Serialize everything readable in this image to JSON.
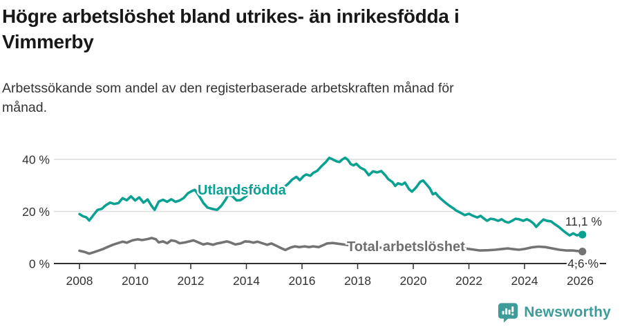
{
  "header": {
    "title_lines": [
      "Högre arbetslöshet bland utrikes- än inrikesfödda i",
      "Vimmerby"
    ],
    "subtitle_lines": [
      "Arbetssökande som andel av den registerbaserade arbetskraften månad för",
      "månad."
    ]
  },
  "colors": {
    "accent_teal": "#0aa192",
    "line_gray": "#737373",
    "label_gray": "#6e6e6e",
    "brand_teal": "#3d9b9a",
    "text_dark": "#181818",
    "text_body": "#333333",
    "gridline": "#dcdcdc",
    "axis": "#2e2e2e"
  },
  "chart_data": {
    "type": "line",
    "title": "Högre arbetslöshet bland utrikes- än inrikesfödda i Vimmerby",
    "subtitle": "Arbetssökande som andel av den registerbaserade arbetskraften månad för månad.",
    "xlabel": "",
    "ylabel": "",
    "grid": "horizontal",
    "legend_position": "inline-annotations",
    "x_axis": {
      "range": [
        2008,
        2026.2
      ],
      "ticks": [
        {
          "value": 2008,
          "label": "2008"
        },
        {
          "value": 2010,
          "label": "2010"
        },
        {
          "value": 2012,
          "label": "2012"
        },
        {
          "value": 2014,
          "label": "2014"
        },
        {
          "value": 2016,
          "label": "2016"
        },
        {
          "value": 2018,
          "label": "2018"
        },
        {
          "value": 2020,
          "label": "2020"
        },
        {
          "value": 2022,
          "label": "2022"
        },
        {
          "value": 2024,
          "label": "2024"
        },
        {
          "value": 2026,
          "label": "2026"
        }
      ]
    },
    "y_axis": {
      "range": [
        0,
        44
      ],
      "unit": "%",
      "ticks": [
        {
          "value": 0,
          "label": "0 %"
        },
        {
          "value": 20,
          "label": "20 %"
        },
        {
          "value": 40,
          "label": "40 %"
        }
      ]
    },
    "series": [
      {
        "name": "Utlandsfödda",
        "color": "#0aa192",
        "label_color": "#0aa192",
        "end_label": "11,1 %",
        "end_value": 11.1,
        "points": [
          [
            2008.0,
            19.0
          ],
          [
            2008.1,
            18.3
          ],
          [
            2008.25,
            17.7
          ],
          [
            2008.35,
            16.5
          ],
          [
            2008.5,
            18.6
          ],
          [
            2008.65,
            20.6
          ],
          [
            2008.8,
            21.0
          ],
          [
            2008.95,
            22.4
          ],
          [
            2009.1,
            23.4
          ],
          [
            2009.25,
            22.9
          ],
          [
            2009.4,
            23.2
          ],
          [
            2009.55,
            25.1
          ],
          [
            2009.7,
            24.3
          ],
          [
            2009.85,
            25.8
          ],
          [
            2010.0,
            24.2
          ],
          [
            2010.15,
            25.4
          ],
          [
            2010.3,
            23.4
          ],
          [
            2010.45,
            24.6
          ],
          [
            2010.6,
            22.0
          ],
          [
            2010.7,
            20.6
          ],
          [
            2010.85,
            23.8
          ],
          [
            2011.0,
            24.5
          ],
          [
            2011.15,
            23.7
          ],
          [
            2011.3,
            24.7
          ],
          [
            2011.45,
            23.7
          ],
          [
            2011.6,
            24.2
          ],
          [
            2011.75,
            25.2
          ],
          [
            2011.9,
            27.0
          ],
          [
            2012.05,
            27.9
          ],
          [
            2012.15,
            28.3
          ],
          [
            2012.3,
            26.0
          ],
          [
            2012.45,
            23.3
          ],
          [
            2012.6,
            21.5
          ],
          [
            2012.8,
            20.9
          ],
          [
            2012.95,
            20.6
          ],
          [
            2013.1,
            22.2
          ],
          [
            2013.25,
            24.5
          ],
          [
            2013.35,
            26.4
          ],
          [
            2013.5,
            25.8
          ],
          [
            2013.65,
            24.2
          ],
          [
            2013.8,
            24.4
          ],
          [
            2013.95,
            25.5
          ],
          [
            2014.1,
            26.9
          ],
          [
            2014.2,
            27.8
          ],
          [
            2014.35,
            26.6
          ],
          [
            2014.5,
            27.1
          ],
          [
            2014.7,
            27.7
          ],
          [
            2014.9,
            28.3
          ],
          [
            2015.05,
            28.0
          ],
          [
            2015.2,
            28.7
          ],
          [
            2015.35,
            29.3
          ],
          [
            2015.5,
            30.6
          ],
          [
            2015.65,
            32.3
          ],
          [
            2015.8,
            33.3
          ],
          [
            2015.92,
            32.0
          ],
          [
            2016.05,
            33.5
          ],
          [
            2016.15,
            34.2
          ],
          [
            2016.3,
            33.7
          ],
          [
            2016.4,
            34.8
          ],
          [
            2016.55,
            35.6
          ],
          [
            2016.7,
            37.4
          ],
          [
            2016.85,
            38.9
          ],
          [
            2016.98,
            40.6
          ],
          [
            2017.1,
            40.0
          ],
          [
            2017.25,
            39.2
          ],
          [
            2017.35,
            39.0
          ],
          [
            2017.45,
            40.0
          ],
          [
            2017.55,
            40.6
          ],
          [
            2017.65,
            39.8
          ],
          [
            2017.75,
            38.2
          ],
          [
            2017.85,
            37.7
          ],
          [
            2017.95,
            38.3
          ],
          [
            2018.1,
            36.8
          ],
          [
            2018.25,
            36.0
          ],
          [
            2018.4,
            33.9
          ],
          [
            2018.55,
            35.4
          ],
          [
            2018.7,
            35.0
          ],
          [
            2018.85,
            35.5
          ],
          [
            2019.0,
            33.8
          ],
          [
            2019.1,
            32.4
          ],
          [
            2019.25,
            31.3
          ],
          [
            2019.35,
            29.8
          ],
          [
            2019.45,
            30.8
          ],
          [
            2019.6,
            30.3
          ],
          [
            2019.7,
            31.1
          ],
          [
            2019.85,
            28.5
          ],
          [
            2019.95,
            27.6
          ],
          [
            2020.1,
            29.2
          ],
          [
            2020.25,
            31.4
          ],
          [
            2020.35,
            31.9
          ],
          [
            2020.5,
            30.1
          ],
          [
            2020.6,
            28.8
          ],
          [
            2020.7,
            26.6
          ],
          [
            2020.8,
            27.1
          ],
          [
            2020.9,
            25.8
          ],
          [
            2021.0,
            24.8
          ],
          [
            2021.15,
            23.4
          ],
          [
            2021.3,
            22.2
          ],
          [
            2021.45,
            21.1
          ],
          [
            2021.55,
            20.3
          ],
          [
            2021.7,
            19.5
          ],
          [
            2021.85,
            18.6
          ],
          [
            2022.0,
            19.1
          ],
          [
            2022.15,
            18.3
          ],
          [
            2022.3,
            17.7
          ],
          [
            2022.42,
            18.3
          ],
          [
            2022.55,
            17.2
          ],
          [
            2022.65,
            16.4
          ],
          [
            2022.78,
            17.2
          ],
          [
            2022.9,
            17.0
          ],
          [
            2023.05,
            16.4
          ],
          [
            2023.18,
            17.0
          ],
          [
            2023.3,
            16.1
          ],
          [
            2023.42,
            15.7
          ],
          [
            2023.55,
            16.4
          ],
          [
            2023.68,
            17.2
          ],
          [
            2023.8,
            17.0
          ],
          [
            2023.95,
            16.4
          ],
          [
            2024.08,
            17.0
          ],
          [
            2024.2,
            16.4
          ],
          [
            2024.32,
            15.4
          ],
          [
            2024.42,
            14.1
          ],
          [
            2024.55,
            15.6
          ],
          [
            2024.68,
            16.9
          ],
          [
            2024.8,
            16.4
          ],
          [
            2024.95,
            16.2
          ],
          [
            2025.1,
            15.0
          ],
          [
            2025.25,
            13.9
          ],
          [
            2025.4,
            12.5
          ],
          [
            2025.5,
            11.7
          ],
          [
            2025.62,
            10.8
          ],
          [
            2025.75,
            11.6
          ],
          [
            2025.88,
            10.8
          ],
          [
            2026.0,
            11.3
          ],
          [
            2026.08,
            11.1
          ]
        ]
      },
      {
        "name": "Total arbetslöshet",
        "color": "#737373",
        "label_color": "#6e6e6e",
        "end_label": "4,6 %",
        "end_value": 4.6,
        "points": [
          [
            2008.0,
            4.9
          ],
          [
            2008.2,
            4.4
          ],
          [
            2008.35,
            3.8
          ],
          [
            2008.5,
            4.3
          ],
          [
            2008.7,
            5.0
          ],
          [
            2008.85,
            5.6
          ],
          [
            2009.0,
            6.3
          ],
          [
            2009.2,
            7.2
          ],
          [
            2009.4,
            7.9
          ],
          [
            2009.55,
            8.4
          ],
          [
            2009.7,
            8.0
          ],
          [
            2009.9,
            8.9
          ],
          [
            2010.1,
            9.3
          ],
          [
            2010.25,
            9.0
          ],
          [
            2010.45,
            9.4
          ],
          [
            2010.6,
            9.8
          ],
          [
            2010.75,
            9.3
          ],
          [
            2010.85,
            8.1
          ],
          [
            2011.0,
            8.5
          ],
          [
            2011.15,
            7.8
          ],
          [
            2011.3,
            8.9
          ],
          [
            2011.45,
            8.6
          ],
          [
            2011.6,
            7.8
          ],
          [
            2011.8,
            8.1
          ],
          [
            2011.95,
            8.5
          ],
          [
            2012.1,
            8.9
          ],
          [
            2012.3,
            8.0
          ],
          [
            2012.45,
            7.3
          ],
          [
            2012.6,
            7.7
          ],
          [
            2012.8,
            7.2
          ],
          [
            2012.95,
            7.7
          ],
          [
            2013.1,
            8.0
          ],
          [
            2013.3,
            8.5
          ],
          [
            2013.45,
            8.0
          ],
          [
            2013.6,
            7.3
          ],
          [
            2013.8,
            7.7
          ],
          [
            2013.95,
            8.5
          ],
          [
            2014.1,
            8.4
          ],
          [
            2014.25,
            8.0
          ],
          [
            2014.4,
            8.4
          ],
          [
            2014.6,
            7.7
          ],
          [
            2014.75,
            7.2
          ],
          [
            2014.9,
            7.7
          ],
          [
            2015.1,
            6.7
          ],
          [
            2015.25,
            5.9
          ],
          [
            2015.4,
            5.2
          ],
          [
            2015.6,
            6.2
          ],
          [
            2015.75,
            6.6
          ],
          [
            2015.9,
            6.3
          ],
          [
            2016.1,
            6.6
          ],
          [
            2016.25,
            6.3
          ],
          [
            2016.4,
            6.6
          ],
          [
            2016.6,
            6.3
          ],
          [
            2016.75,
            7.0
          ],
          [
            2016.9,
            7.7
          ],
          [
            2017.1,
            7.9
          ],
          [
            2017.3,
            7.6
          ],
          [
            2017.5,
            7.3
          ],
          [
            2017.6,
            7.2
          ],
          [
            2017.8,
            6.9
          ],
          [
            2018.0,
            6.6
          ],
          [
            2018.3,
            6.3
          ],
          [
            2018.7,
            6.1
          ],
          [
            2019.0,
            6.1
          ],
          [
            2019.5,
            6.3
          ],
          [
            2020.0,
            6.6
          ],
          [
            2020.3,
            7.5
          ],
          [
            2020.6,
            7.6
          ],
          [
            2020.9,
            7.2
          ],
          [
            2021.2,
            6.8
          ],
          [
            2021.5,
            6.3
          ],
          [
            2021.8,
            5.9
          ],
          [
            2022.0,
            5.6
          ],
          [
            2022.2,
            5.3
          ],
          [
            2022.4,
            5.0
          ],
          [
            2022.7,
            5.1
          ],
          [
            2022.95,
            5.3
          ],
          [
            2023.2,
            5.6
          ],
          [
            2023.4,
            5.8
          ],
          [
            2023.6,
            5.5
          ],
          [
            2023.8,
            5.3
          ],
          [
            2024.0,
            5.6
          ],
          [
            2024.25,
            6.2
          ],
          [
            2024.5,
            6.5
          ],
          [
            2024.75,
            6.3
          ],
          [
            2025.0,
            5.8
          ],
          [
            2025.25,
            5.3
          ],
          [
            2025.5,
            5.0
          ],
          [
            2025.75,
            5.0
          ],
          [
            2026.0,
            4.7
          ],
          [
            2026.08,
            4.6
          ]
        ]
      }
    ]
  },
  "footer": {
    "brand": "Newsworthy"
  }
}
